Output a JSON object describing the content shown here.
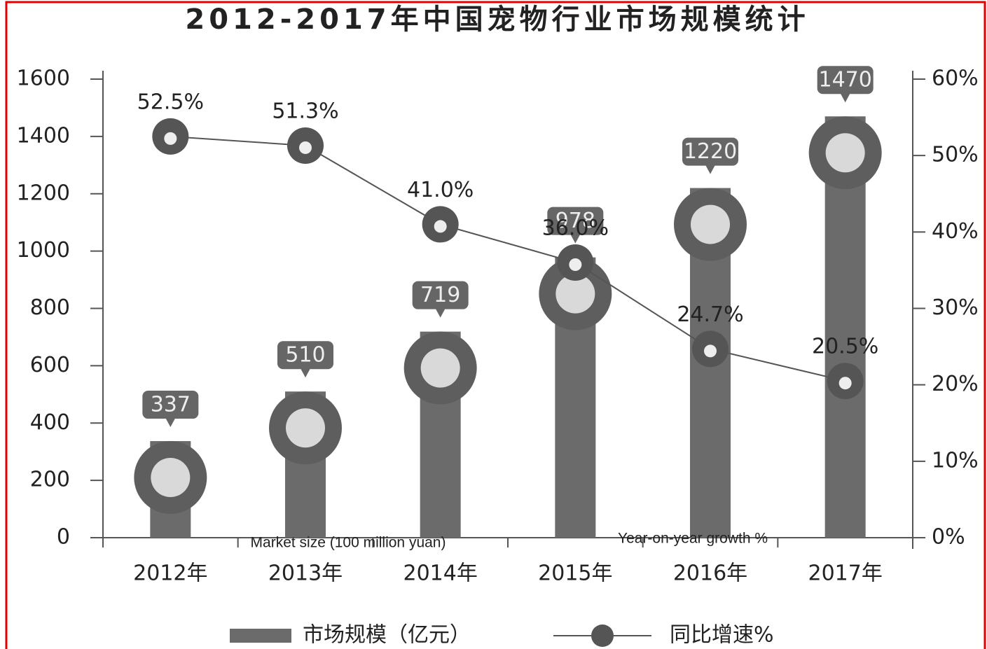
{
  "chart_data": {
    "type": "bar-line",
    "title": "2012-2017年中国宠物行业市场规模统计",
    "categories": [
      "2012年",
      "2013年",
      "2014年",
      "2015年",
      "2016年",
      "2017年"
    ],
    "series": [
      {
        "name": "市场规模（亿元）",
        "type": "bar",
        "color": "#6b6b6b",
        "values": [
          337,
          510,
          719,
          978,
          1220,
          1470
        ]
      },
      {
        "name": "同比增速%",
        "type": "line",
        "axis": "y2",
        "color": "#555555",
        "values": [
          52.5,
          51.3,
          41.0,
          36.0,
          24.7,
          20.5
        ],
        "value_labels": [
          "52.5%",
          "51.3%",
          "41.0%",
          "36.0%",
          "24.7%",
          "20.5%"
        ]
      }
    ],
    "ylim": [
      0,
      1600
    ],
    "yticks": [
      0,
      200,
      400,
      600,
      800,
      1000,
      1200,
      1400,
      1600
    ],
    "y2lim": [
      0,
      60
    ],
    "y2ticks": [
      {
        "value": 0,
        "label": "0%"
      },
      {
        "value": 10,
        "label": "10%"
      },
      {
        "value": 20,
        "label": "20%"
      },
      {
        "value": 30,
        "label": "30%"
      },
      {
        "value": 40,
        "label": "40%"
      },
      {
        "value": 50,
        "label": "50%"
      },
      {
        "value": 60,
        "label": "60%"
      }
    ],
    "annotations": [
      "Market size (100 million yuan)",
      "Year-on-year growth %"
    ],
    "grid": false
  }
}
